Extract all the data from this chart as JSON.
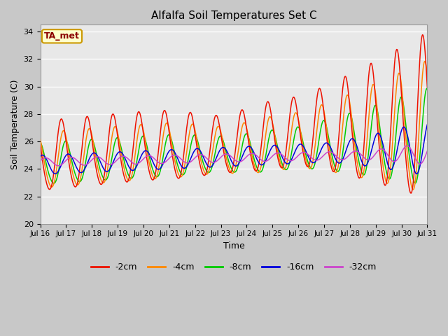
{
  "title": "Alfalfa Soil Temperatures Set C",
  "xlabel": "Time",
  "ylabel": "Soil Temperature (C)",
  "ylim": [
    20,
    34.5
  ],
  "xlim": [
    0,
    360
  ],
  "fig_bg": "#c8c8c8",
  "plot_bg": "#e8e8e8",
  "series_colors": {
    "-2cm": "#ee1100",
    "-4cm": "#ff8800",
    "-8cm": "#00cc00",
    "-16cm": "#0000dd",
    "-32cm": "#cc44cc"
  },
  "annotation_text": "TA_met",
  "annotation_bg": "#ffffcc",
  "annotation_border": "#cc9900",
  "tick_labels": [
    "Jul 16",
    "Jul 17",
    "Jul 18",
    "Jul 19",
    "Jul 20",
    "Jul 21",
    "Jul 22",
    "Jul 23",
    "Jul 24",
    "Jul 25",
    "Jul 26",
    "Jul 27",
    "Jul 28",
    "Jul 29",
    "Jul 30",
    "Jul 31"
  ],
  "yticks": [
    20,
    22,
    24,
    26,
    28,
    30,
    32,
    34
  ],
  "figsize": [
    6.4,
    4.8
  ],
  "dpi": 100
}
